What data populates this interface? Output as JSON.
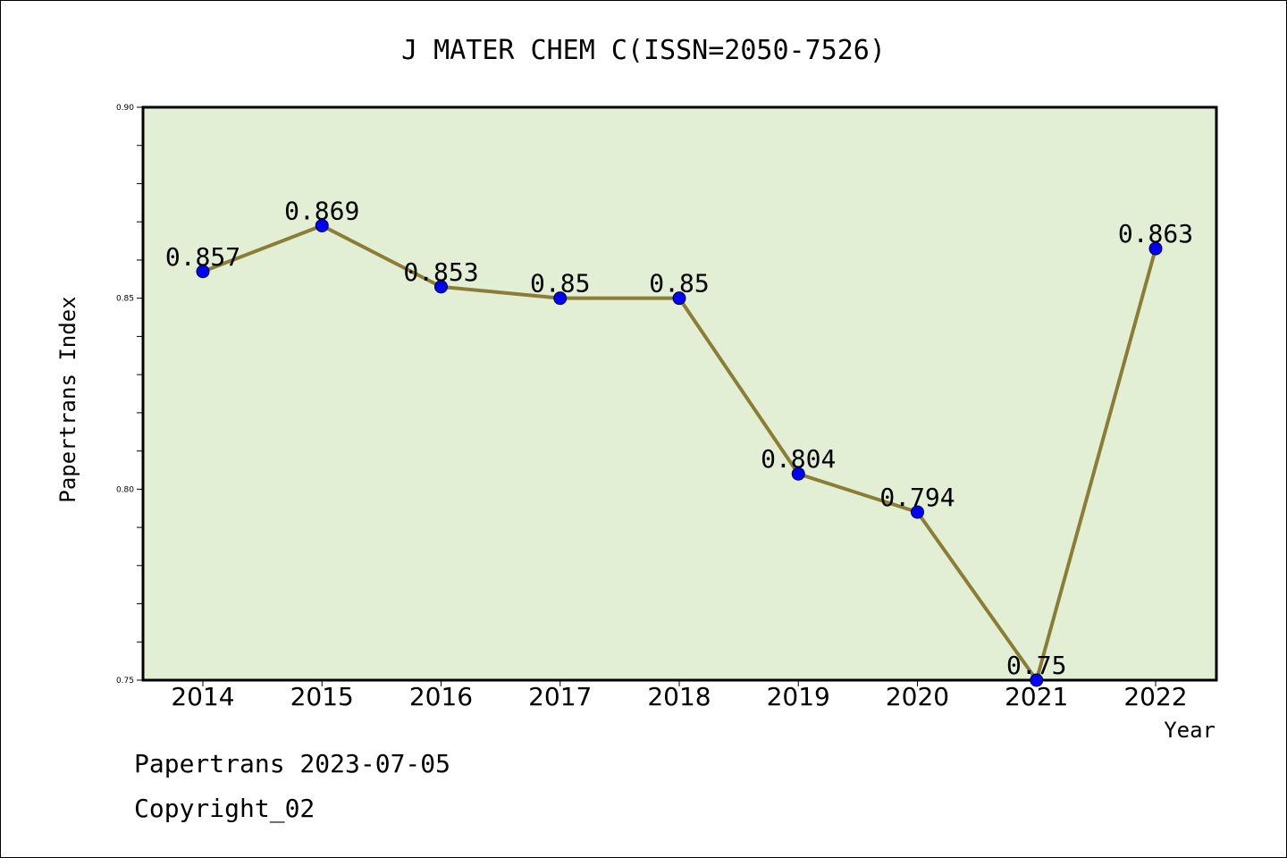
{
  "colors": {
    "plot_background": "#e2efd5",
    "line": "#8b7d35",
    "marker": "#0000ff",
    "axis": "#000000"
  },
  "footer": {
    "line1": "Papertrans 2023-07-05",
    "line2": "Copyright_02"
  },
  "chart_data": {
    "type": "line",
    "title": "J MATER CHEM C(ISSN=2050-7526)",
    "xlabel": "Year",
    "ylabel": "Papertrans Index",
    "categories": [
      "2014",
      "2015",
      "2016",
      "2017",
      "2018",
      "2019",
      "2020",
      "2021",
      "2022"
    ],
    "series": [
      {
        "values": [
          0.857,
          0.869,
          0.853,
          0.85,
          0.85,
          0.804,
          0.794,
          0.75,
          0.863
        ],
        "labels": [
          "0.857",
          "0.869",
          "0.853",
          "0.85",
          "0.85",
          "0.804",
          "0.794",
          "0.75",
          "0.863"
        ]
      }
    ],
    "ylim": [
      0.75,
      0.9
    ],
    "yticks": [
      "0.75",
      "0.80",
      "0.85",
      "0.90"
    ],
    "grid": false,
    "legend": "none"
  }
}
